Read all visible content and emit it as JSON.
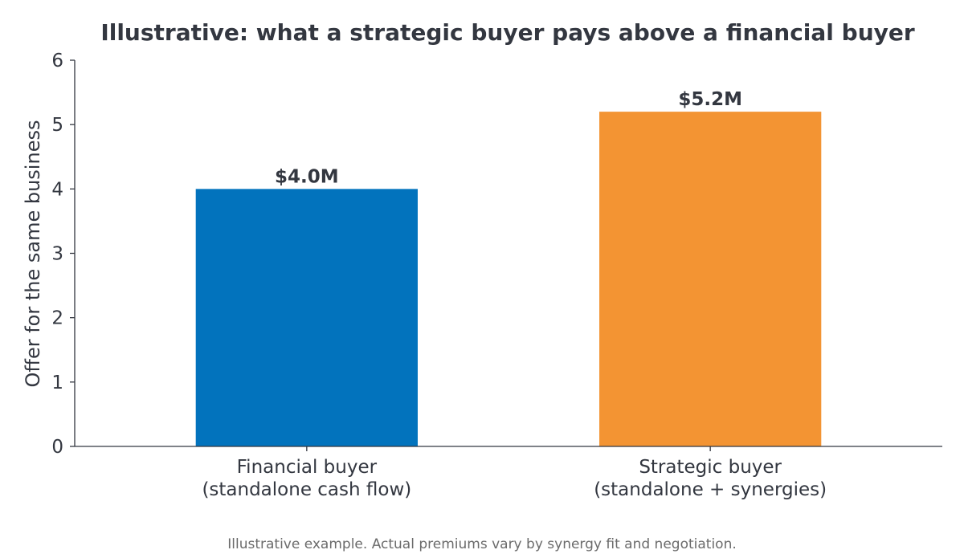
{
  "chart_data": {
    "type": "bar",
    "title": "Illustrative: what a strategic buyer pays above a financial buyer",
    "xlabel": "",
    "ylabel": "Offer for the same business",
    "categories": [
      [
        "Financial buyer",
        "(standalone cash flow)"
      ],
      [
        "Strategic buyer",
        "(standalone + synergies)"
      ]
    ],
    "values": [
      4.0,
      5.2
    ],
    "data_labels": [
      "$4.0M",
      "$5.2M"
    ],
    "colors": [
      "#0273bd",
      "#f39433"
    ],
    "ylim": [
      0,
      6
    ],
    "yticks": [
      "0",
      "1",
      "2",
      "3",
      "4",
      "5",
      "6"
    ],
    "grid": false,
    "legend": "none"
  },
  "footnote": "Illustrative example. Actual premiums vary by synergy fit and negotiation."
}
